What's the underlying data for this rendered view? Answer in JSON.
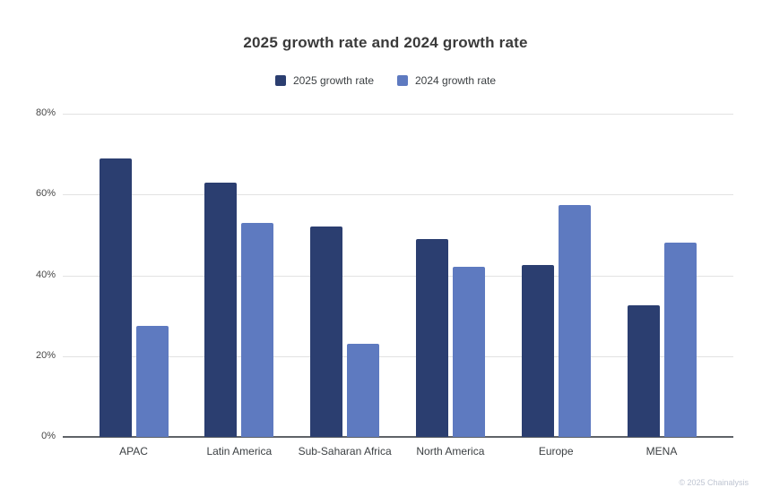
{
  "page": {
    "background": "#ffffff"
  },
  "chart_data": {
    "type": "bar",
    "title": "2025 growth rate and 2024 growth rate",
    "categories": [
      "APAC",
      "Latin America",
      "Sub-Saharan Africa",
      "North America",
      "Europe",
      "MENA"
    ],
    "series": [
      {
        "name": "2025 growth rate",
        "color": "#2b3e70",
        "values": [
          69,
          63,
          52,
          49,
          42.5,
          32.5
        ]
      },
      {
        "name": "2024 growth rate",
        "color": "#5e7ac0",
        "values": [
          27.5,
          53,
          23,
          42,
          57.5,
          48
        ]
      }
    ],
    "xlabel": "",
    "ylabel": "",
    "ylim": [
      0,
      80
    ],
    "y_ticks": [
      0,
      20,
      40,
      60,
      80
    ],
    "y_tick_labels": [
      "0%",
      "20%",
      "40%",
      "60%",
      "80%"
    ],
    "grid": true,
    "legend_position": "top",
    "colors": {
      "gridline": "#e2e2e2",
      "axis_line": "#5f6368",
      "tick_text": "#474747",
      "title_text": "#3a3a3a"
    }
  },
  "footer": {
    "credit": "© 2025 Chainalysis"
  }
}
